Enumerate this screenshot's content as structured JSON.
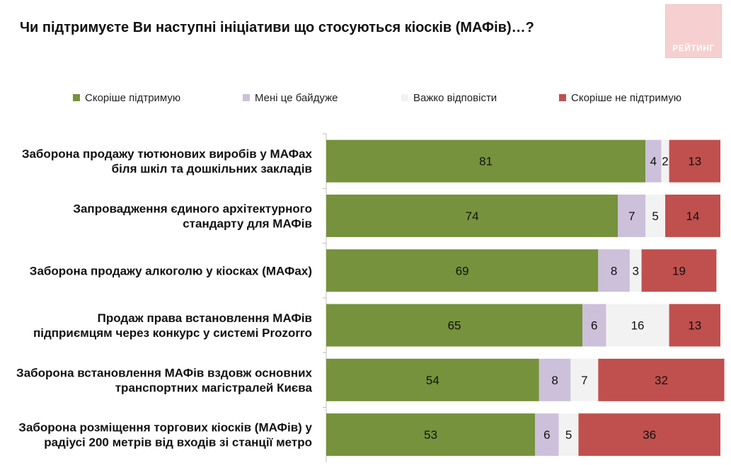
{
  "title": "Чи підтримуєте Ви наступні ініціативи що стосуються кіосків (МАФів)…?",
  "logo": {
    "text": "РЕЙТИНГ"
  },
  "chart_data": {
    "type": "bar",
    "orientation": "horizontal",
    "stacked": true,
    "xlim": [
      0,
      100
    ],
    "categories": [
      [
        "Заборона продажу тютюнових виробів у МАФах",
        "біля шкіл та дошкільних закладів"
      ],
      [
        "Запровадження єдиного архітектурного",
        "стандарту для МАФів"
      ],
      [
        "Заборона продажу алкоголю у кіосках (МАФах)"
      ],
      [
        "Продаж права встановлення МАФів",
        "підприємцям через конкурс у системі Prozorro"
      ],
      [
        "Заборона встановлення МАФів вздовж основних",
        "транспортних магістралей Києва"
      ],
      [
        "Заборона розміщення торгових кіосків (МАФів) у",
        "радіусі 200 метрів від входів зі станції метро"
      ]
    ],
    "series": [
      {
        "name": "Скоріше підтримую",
        "color": "#76923c",
        "values": [
          81,
          74,
          69,
          65,
          54,
          53
        ]
      },
      {
        "name": "Мені це байдуже",
        "color": "#ccc0da",
        "values": [
          4,
          7,
          8,
          6,
          8,
          6
        ]
      },
      {
        "name": "Важко відповісти",
        "color": "#f2f2f2",
        "values": [
          2,
          5,
          3,
          16,
          7,
          5
        ]
      },
      {
        "name": "Скоріше не підтримую",
        "color": "#c0504d",
        "values": [
          13,
          14,
          19,
          13,
          32,
          36
        ]
      }
    ],
    "legend_position": "top",
    "grid": false
  }
}
